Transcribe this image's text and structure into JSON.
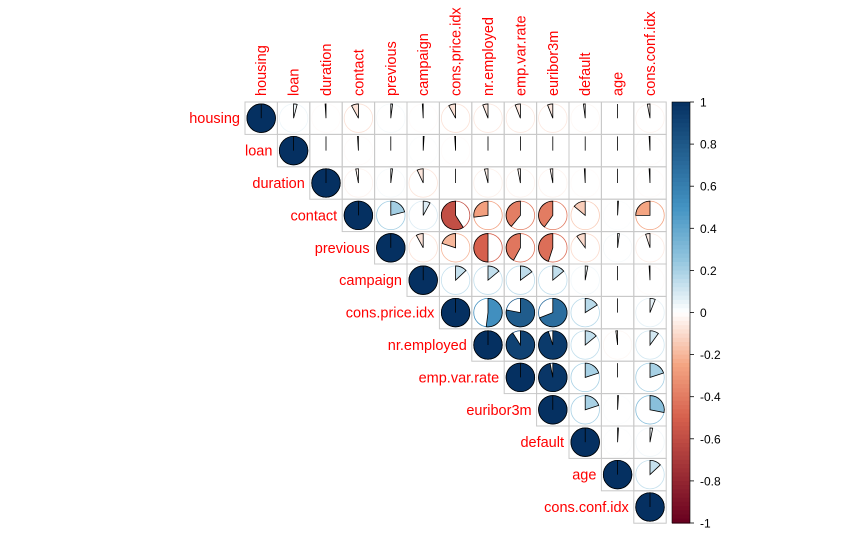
{
  "chart_data": {
    "type": "heatmap",
    "title": "",
    "variables": [
      "housing",
      "loan",
      "duration",
      "contact",
      "previous",
      "campaign",
      "cons.price.idx",
      "nr.employed",
      "emp.var.rate",
      "euribor3m",
      "default",
      "age",
      "cons.conf.idx"
    ],
    "matrix": [
      [
        1,
        0.04,
        -0.01,
        -0.08,
        0.02,
        -0.01,
        -0.08,
        -0.06,
        -0.06,
        -0.06,
        -0.02,
        0.0,
        -0.03
      ],
      [
        0.04,
        1,
        0.0,
        -0.01,
        0.0,
        0.01,
        -0.01,
        0.0,
        0.0,
        0.0,
        0.0,
        0.0,
        -0.01
      ],
      [
        -0.01,
        0.0,
        1,
        -0.03,
        0.02,
        -0.07,
        0.0,
        -0.04,
        -0.03,
        -0.03,
        -0.01,
        0.0,
        -0.01
      ],
      [
        -0.08,
        -0.01,
        -0.03,
        1,
        0.21,
        0.08,
        -0.59,
        -0.27,
        -0.39,
        -0.4,
        -0.14,
        0.01,
        -0.25
      ],
      [
        0.02,
        0.0,
        0.02,
        0.21,
        1,
        -0.08,
        -0.2,
        -0.5,
        -0.42,
        -0.45,
        -0.1,
        0.02,
        -0.05
      ],
      [
        -0.01,
        0.01,
        -0.07,
        0.08,
        -0.08,
        1,
        0.13,
        0.14,
        0.15,
        0.14,
        0.03,
        0.0,
        -0.01
      ],
      [
        -0.08,
        -0.01,
        0.0,
        -0.59,
        -0.2,
        0.13,
        1,
        0.52,
        0.78,
        0.69,
        0.16,
        0.0,
        0.06
      ],
      [
        -0.06,
        0.0,
        -0.04,
        -0.27,
        -0.5,
        0.14,
        0.52,
        1,
        0.91,
        0.95,
        0.14,
        -0.02,
        0.1
      ],
      [
        -0.06,
        0.0,
        -0.03,
        -0.39,
        -0.42,
        0.15,
        0.78,
        0.91,
        1,
        0.97,
        0.2,
        0.0,
        0.2
      ],
      [
        -0.06,
        0.0,
        -0.03,
        -0.4,
        -0.45,
        0.14,
        0.69,
        0.95,
        0.97,
        1,
        0.2,
        0.01,
        0.28
      ],
      [
        -0.02,
        0.0,
        -0.01,
        -0.14,
        -0.1,
        0.03,
        0.16,
        0.14,
        0.2,
        0.2,
        1,
        0.01,
        0.03
      ],
      [
        0.0,
        0.0,
        0.0,
        0.01,
        0.02,
        0.0,
        0.0,
        -0.02,
        0.0,
        0.01,
        0.01,
        1,
        0.13
      ],
      [
        -0.03,
        -0.01,
        -0.01,
        -0.25,
        -0.05,
        -0.01,
        0.06,
        0.1,
        0.2,
        0.28,
        0.03,
        0.13,
        1
      ]
    ],
    "display": "upper triangle, pie glyphs",
    "colorbar": {
      "ticks": [
        "1",
        "0.8",
        "0.6",
        "0.4",
        "0.2",
        "0",
        "-0.2",
        "-0.4",
        "-0.6",
        "-0.8",
        "-1"
      ],
      "colors": {
        "negative": "#67001F",
        "mid_negative": "#D6604D",
        "zero": "#FFFFFF",
        "mid_positive": "#4393C3",
        "positive": "#053061"
      }
    },
    "label_color": "#FF0000",
    "grid_color": "#C8C8C8"
  }
}
